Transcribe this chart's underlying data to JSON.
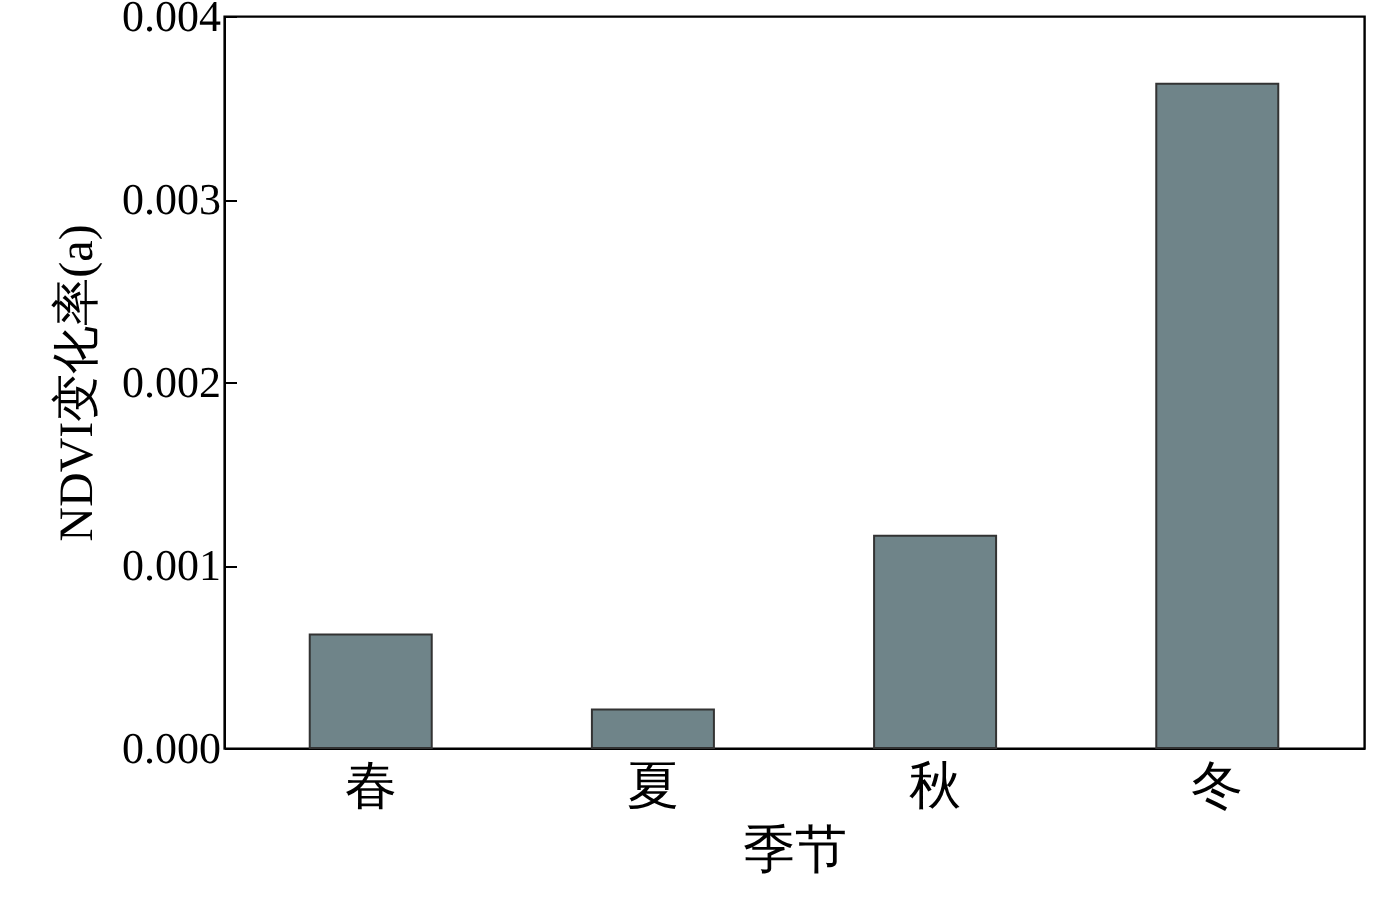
{
  "chart_data": {
    "type": "bar",
    "xlabel": "季节",
    "ylabel": "NDVI变化率(a)",
    "categories": [
      "春",
      "夏",
      "秋",
      "冬"
    ],
    "values": [
      0.00062,
      0.00021,
      0.00116,
      0.00363
    ],
    "color": "#6f8489",
    "ylim": [
      0,
      0.004
    ],
    "yticks": [
      {
        "value": 0,
        "label": "0.000"
      },
      {
        "value": 0.001,
        "label": "0.001"
      },
      {
        "value": 0.002,
        "label": "0.002"
      },
      {
        "value": 0.003,
        "label": "0.003"
      },
      {
        "value": 0.004,
        "label": "0.004"
      }
    ],
    "grid": false
  }
}
